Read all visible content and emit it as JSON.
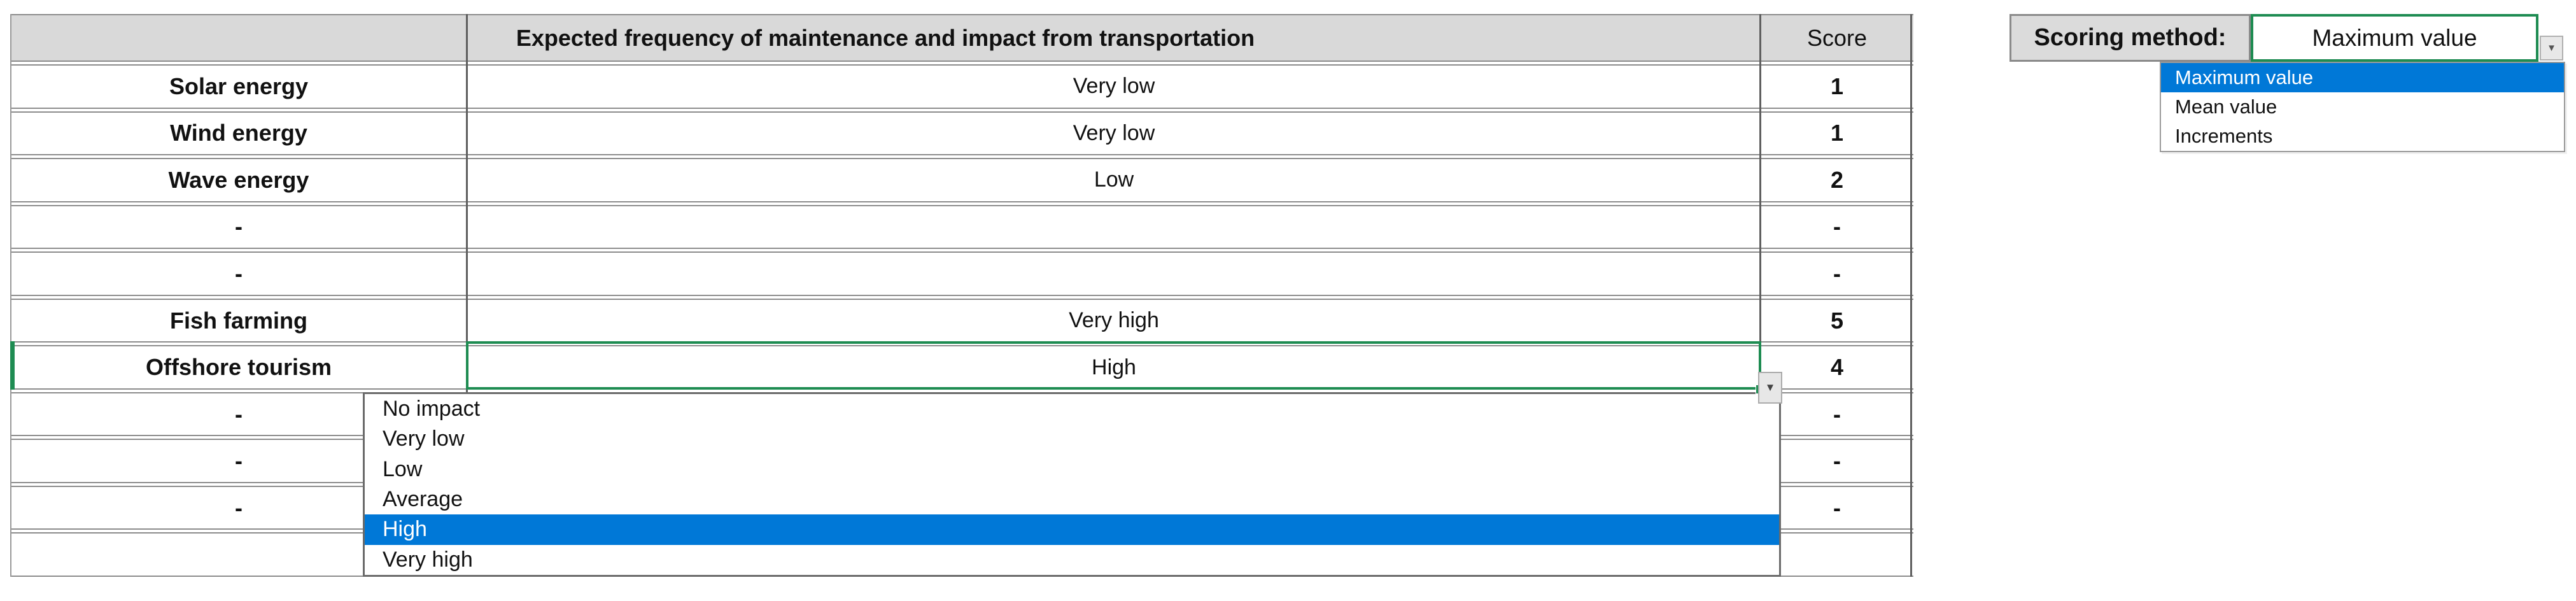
{
  "table": {
    "header": {
      "title": "Expected frequency of maintenance and impact from transportation",
      "score_label": "Score"
    },
    "rows": [
      {
        "name": "Solar energy",
        "value": "Very low",
        "score": "1"
      },
      {
        "name": "Wind energy",
        "value": "Very low",
        "score": "1"
      },
      {
        "name": "Wave energy",
        "value": "Low",
        "score": "2"
      },
      {
        "name": "-",
        "value": "",
        "score": "-"
      },
      {
        "name": "-",
        "value": "",
        "score": "-"
      },
      {
        "name": "Fish farming",
        "value": "Very high",
        "score": "5"
      },
      {
        "name": "Offshore tourism",
        "value": "High",
        "score": "4"
      },
      {
        "name": "-",
        "value": "",
        "score": "-"
      },
      {
        "name": "-",
        "value": "",
        "score": "-"
      },
      {
        "name": "-",
        "value": "",
        "score": "-"
      },
      {
        "name": "",
        "value": "",
        "score": ""
      }
    ],
    "selected_row": "Offshore tourism"
  },
  "impact_dropdown": {
    "options": [
      "No impact",
      "Very low",
      "Low",
      "Average",
      "High",
      "Very high"
    ],
    "highlighted": "High"
  },
  "scoring_method": {
    "label": "Scoring method:",
    "value": "Maximum value",
    "options": [
      "Maximum value",
      "Mean value",
      "Increments"
    ],
    "highlighted": "Maximum value"
  },
  "icons": {
    "dropdown_arrow": "▼"
  },
  "colors": {
    "selection_green": "#1E8C52",
    "highlight_blue": "#0078D7",
    "header_grey": "#D9D9D9",
    "grid_grey": "#8c8c8c"
  }
}
